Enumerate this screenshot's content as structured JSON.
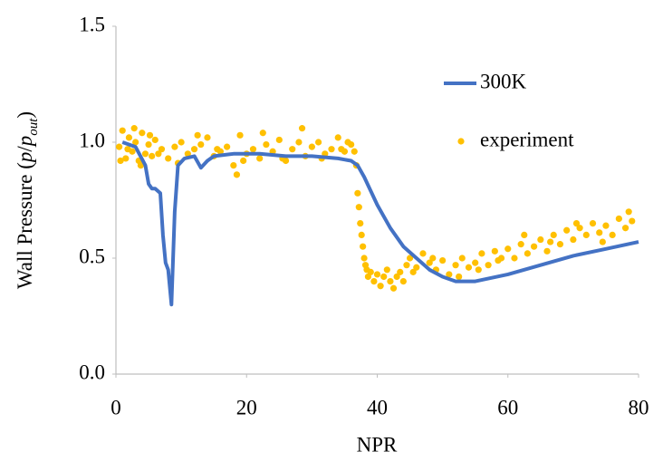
{
  "chart_data": {
    "type": "line",
    "xlabel": "NPR",
    "ylabel": [
      "Wall Pressure (",
      "p",
      "/",
      "p",
      "out",
      ")"
    ],
    "xlim": [
      0,
      80
    ],
    "xticks": [
      0,
      20,
      40,
      60,
      80
    ],
    "ylim": [
      0,
      1.5
    ],
    "yticks": [
      {
        "value": 0,
        "label": "0.0"
      },
      0.5,
      {
        "value": 1,
        "label": "1.0"
      },
      1.5
    ],
    "grid": false,
    "legend": "upper right",
    "series": [
      {
        "name": "300K",
        "type": "line",
        "color": "#4472c4",
        "x": [
          1,
          3,
          4.5,
          5,
          5.5,
          6,
          6.8,
          7.2,
          7.6,
          8,
          8.5,
          9,
          9.5,
          10.5,
          12,
          13,
          14,
          15,
          18,
          22,
          26,
          30,
          34,
          36,
          37,
          38,
          40,
          42,
          44,
          46,
          48,
          50,
          52,
          55,
          60,
          65,
          70,
          75,
          80
        ],
        "values": [
          1.0,
          0.98,
          0.9,
          0.82,
          0.8,
          0.8,
          0.78,
          0.6,
          0.48,
          0.45,
          0.3,
          0.7,
          0.9,
          0.93,
          0.94,
          0.89,
          0.92,
          0.94,
          0.95,
          0.95,
          0.94,
          0.94,
          0.93,
          0.92,
          0.9,
          0.85,
          0.73,
          0.63,
          0.55,
          0.5,
          0.45,
          0.42,
          0.4,
          0.4,
          0.43,
          0.47,
          0.51,
          0.54,
          0.57
        ]
      },
      {
        "name": "experiment",
        "type": "scatter",
        "color": "#ffc000",
        "x": [
          0.5,
          1,
          1.5,
          2,
          2.5,
          3,
          3.5,
          4,
          4.5,
          5,
          5.5,
          6,
          7,
          8,
          9,
          10,
          11,
          12,
          13,
          14,
          15,
          16,
          17,
          18,
          19,
          20,
          21,
          22,
          23,
          24,
          25,
          26,
          27,
          28,
          29,
          30,
          31,
          32,
          33,
          34,
          35,
          36,
          0.7,
          1.8,
          2.8,
          3.8,
          5.2,
          6.5,
          9.5,
          12.5,
          15.5,
          18.5,
          19.5,
          22.5,
          25.5,
          28.5,
          31.5,
          34.5,
          35.5,
          36.5,
          36.8,
          37,
          37.2,
          37.4,
          37.6,
          37.8,
          38,
          38.2,
          38.4,
          38.6,
          39,
          39.5,
          40,
          40.5,
          41,
          41.5,
          42,
          42.5,
          43,
          43.5,
          44,
          44.5,
          45,
          46,
          47,
          48,
          49,
          50,
          51,
          52,
          53,
          54,
          55,
          56,
          57,
          58,
          59,
          60,
          61,
          62,
          63,
          64,
          65,
          66,
          67,
          68,
          69,
          70,
          71,
          72,
          73,
          74,
          75,
          76,
          77,
          78,
          79,
          45.5,
          48.5,
          52.5,
          55.5,
          58.5,
          62.5,
          66.5,
          70.5,
          74.5,
          78.5
        ],
        "values": [
          0.98,
          1.05,
          0.93,
          1.02,
          0.96,
          1.0,
          0.92,
          1.04,
          0.95,
          0.99,
          0.94,
          1.01,
          0.97,
          0.93,
          0.98,
          1.0,
          0.95,
          0.97,
          0.99,
          1.02,
          0.94,
          0.96,
          0.98,
          0.9,
          1.03,
          0.95,
          0.97,
          0.93,
          0.99,
          0.96,
          1.01,
          0.92,
          0.97,
          1.0,
          0.94,
          0.98,
          1.0,
          0.95,
          0.97,
          1.02,
          0.96,
          0.99,
          0.92,
          0.97,
          1.06,
          0.9,
          1.03,
          0.95,
          0.91,
          1.03,
          0.97,
          0.86,
          0.92,
          1.04,
          0.93,
          1.06,
          0.93,
          0.97,
          1.0,
          0.96,
          0.9,
          0.78,
          0.72,
          0.65,
          0.6,
          0.55,
          0.5,
          0.47,
          0.45,
          0.42,
          0.44,
          0.4,
          0.43,
          0.38,
          0.42,
          0.45,
          0.4,
          0.37,
          0.42,
          0.44,
          0.4,
          0.47,
          0.5,
          0.46,
          0.52,
          0.48,
          0.45,
          0.49,
          0.43,
          0.47,
          0.5,
          0.46,
          0.48,
          0.52,
          0.47,
          0.53,
          0.5,
          0.54,
          0.5,
          0.56,
          0.52,
          0.55,
          0.58,
          0.53,
          0.6,
          0.56,
          0.62,
          0.58,
          0.63,
          0.6,
          0.65,
          0.61,
          0.64,
          0.6,
          0.67,
          0.63,
          0.66,
          0.44,
          0.5,
          0.42,
          0.45,
          0.49,
          0.6,
          0.57,
          0.65,
          0.57,
          0.7
        ]
      }
    ]
  }
}
